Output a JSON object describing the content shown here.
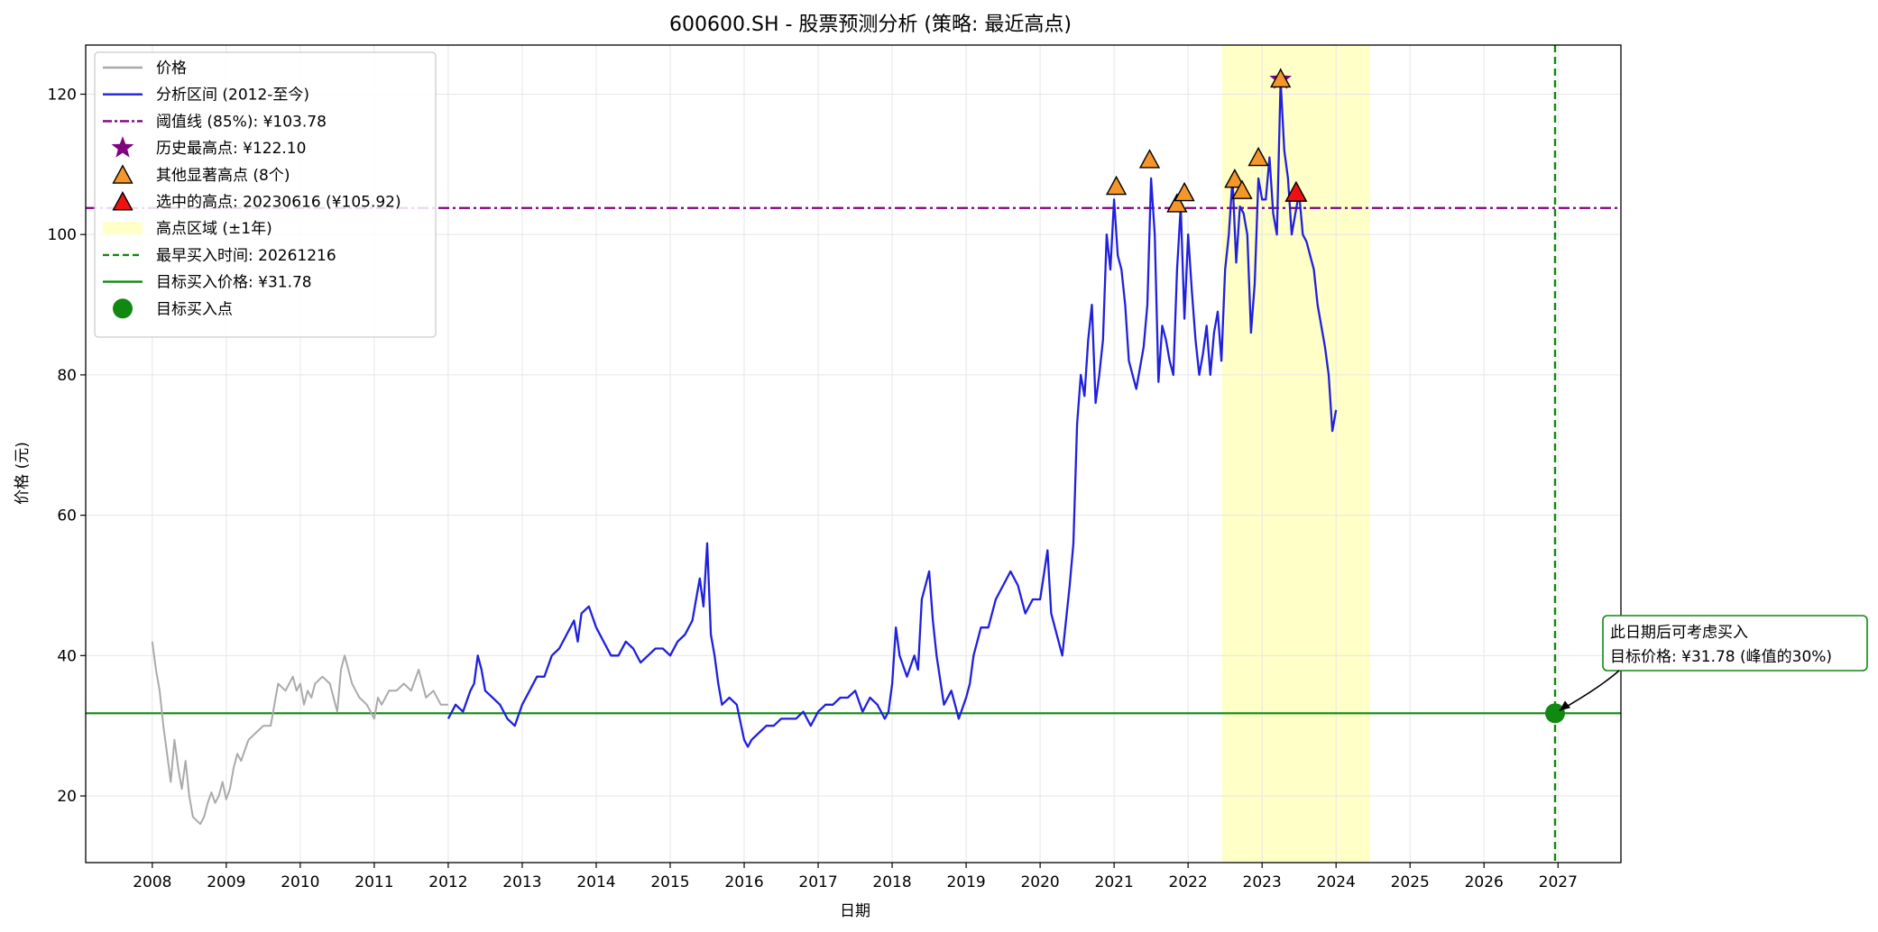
{
  "chart_data": {
    "type": "line",
    "title": "600600.SH  - 股票预测分析 (策略: 最近高点)",
    "xlabel": "日期",
    "ylabel": "价格 (元)",
    "xlim": [
      2007.1,
      2027.85
    ],
    "ylim": [
      10.5,
      127
    ],
    "x_ticks": [
      2008,
      2009,
      2010,
      2011,
      2012,
      2013,
      2014,
      2015,
      2016,
      2017,
      2018,
      2019,
      2020,
      2021,
      2022,
      2023,
      2024,
      2025,
      2026,
      2027
    ],
    "y_ticks": [
      20,
      40,
      60,
      80,
      100,
      120
    ],
    "grid": true,
    "legend_position": "top-left",
    "colors": {
      "price": "#aaaaaa",
      "analysis": "#2020dd",
      "threshold": "#800080",
      "all_time_high": "#800080",
      "other_peaks": "#f5962a",
      "selected_peak": "#ee1111",
      "high_zone": "#ffffc8",
      "buy": "#118811"
    },
    "series": [
      {
        "name": "价格",
        "key": "price",
        "x": [
          2008.0,
          2008.05,
          2008.1,
          2008.15,
          2008.2,
          2008.25,
          2008.3,
          2008.35,
          2008.4,
          2008.45,
          2008.5,
          2008.55,
          2008.6,
          2008.65,
          2008.7,
          2008.75,
          2008.8,
          2008.85,
          2008.9,
          2008.95,
          2009.0,
          2009.05,
          2009.1,
          2009.15,
          2009.2,
          2009.3,
          2009.4,
          2009.5,
          2009.6,
          2009.7,
          2009.8,
          2009.9,
          2009.95,
          2010.0,
          2010.05,
          2010.1,
          2010.15,
          2010.2,
          2010.3,
          2010.4,
          2010.5,
          2010.55,
          2010.6,
          2010.7,
          2010.75,
          2010.8,
          2010.9,
          2011.0,
          2011.05,
          2011.1,
          2011.2,
          2011.3,
          2011.4,
          2011.5,
          2011.6,
          2011.7,
          2011.8,
          2011.9,
          2012.0
        ],
        "y": [
          42,
          38,
          35,
          30,
          26,
          22,
          28,
          24,
          21,
          25,
          20,
          17,
          16.5,
          16,
          17,
          19,
          20.5,
          19,
          20,
          22,
          19.5,
          21,
          24,
          26,
          25,
          28,
          29,
          30,
          30,
          36,
          35,
          37,
          35,
          36,
          33,
          35,
          34,
          36,
          37,
          36,
          32,
          38,
          40,
          36,
          35,
          34,
          33,
          31,
          34,
          33,
          35,
          35,
          36,
          35,
          38,
          34,
          35,
          33,
          33
        ]
      },
      {
        "name": "分析区间 (2012-至今)",
        "key": "analysis",
        "x": [
          2012.0,
          2012.1,
          2012.2,
          2012.3,
          2012.35,
          2012.4,
          2012.45,
          2012.5,
          2012.6,
          2012.7,
          2012.8,
          2012.9,
          2013.0,
          2013.1,
          2013.2,
          2013.3,
          2013.4,
          2013.5,
          2013.6,
          2013.7,
          2013.75,
          2013.8,
          2013.9,
          2014.0,
          2014.1,
          2014.2,
          2014.3,
          2014.4,
          2014.5,
          2014.6,
          2014.7,
          2014.8,
          2014.9,
          2015.0,
          2015.1,
          2015.2,
          2015.3,
          2015.35,
          2015.4,
          2015.45,
          2015.5,
          2015.55,
          2015.6,
          2015.65,
          2015.7,
          2015.8,
          2015.9,
          2016.0,
          2016.05,
          2016.1,
          2016.2,
          2016.3,
          2016.4,
          2016.5,
          2016.6,
          2016.7,
          2016.8,
          2016.9,
          2017.0,
          2017.1,
          2017.2,
          2017.3,
          2017.4,
          2017.5,
          2017.6,
          2017.7,
          2017.8,
          2017.9,
          2017.95,
          2018.0,
          2018.05,
          2018.1,
          2018.2,
          2018.3,
          2018.35,
          2018.4,
          2018.5,
          2018.55,
          2018.6,
          2018.7,
          2018.8,
          2018.9,
          2019.0,
          2019.05,
          2019.1,
          2019.15,
          2019.2,
          2019.3,
          2019.4,
          2019.5,
          2019.6,
          2019.7,
          2019.8,
          2019.9,
          2020.0,
          2020.1,
          2020.15,
          2020.2,
          2020.3,
          2020.35,
          2020.4,
          2020.45,
          2020.5,
          2020.55,
          2020.6,
          2020.65,
          2020.7,
          2020.75,
          2020.8,
          2020.85,
          2020.9,
          2020.95,
          2021.0,
          2021.05,
          2021.1,
          2021.15,
          2021.2,
          2021.3,
          2021.4,
          2021.45,
          2021.5,
          2021.55,
          2021.6,
          2021.65,
          2021.7,
          2021.75,
          2021.8,
          2021.85,
          2021.9,
          2021.95,
          2022.0,
          2022.05,
          2022.1,
          2022.15,
          2022.2,
          2022.25,
          2022.3,
          2022.35,
          2022.4,
          2022.45,
          2022.5,
          2022.55,
          2022.6,
          2022.65,
          2022.7,
          2022.75,
          2022.8,
          2022.85,
          2022.9,
          2022.95,
          2023.0,
          2023.05,
          2023.1,
          2023.15,
          2023.2,
          2023.25,
          2023.3,
          2023.35,
          2023.4,
          2023.45,
          2023.5,
          2023.55,
          2023.6,
          2023.65,
          2023.7,
          2023.75,
          2023.8,
          2023.85,
          2023.9,
          2023.95,
          2024.0
        ],
        "y": [
          31,
          33,
          32,
          35,
          36,
          40,
          38,
          35,
          34,
          33,
          31,
          30,
          33,
          35,
          37,
          37,
          40,
          41,
          43,
          45,
          42,
          46,
          47,
          44,
          42,
          40,
          40,
          42,
          41,
          39,
          40,
          41,
          41,
          40,
          42,
          43,
          45,
          48,
          51,
          47,
          56,
          43,
          40,
          36,
          33,
          34,
          33,
          28,
          27,
          28,
          29,
          30,
          30,
          31,
          31,
          31,
          32,
          30,
          32,
          33,
          33,
          34,
          34,
          35,
          32,
          34,
          33,
          31,
          32,
          36,
          44,
          40,
          37,
          40,
          38,
          48,
          52,
          45,
          40,
          33,
          35,
          31,
          34,
          36,
          40,
          42,
          44,
          44,
          48,
          50,
          52,
          50,
          46,
          48,
          48,
          55,
          46,
          44,
          40,
          45,
          50,
          56,
          73,
          80,
          77,
          85,
          90,
          76,
          80,
          85,
          100,
          95,
          105,
          97,
          95,
          90,
          82,
          78,
          84,
          90,
          108,
          100,
          79,
          87,
          85,
          82,
          80,
          95,
          104,
          88,
          100,
          92,
          85,
          80,
          83,
          87,
          80,
          86,
          89,
          82,
          95,
          100,
          108,
          96,
          104,
          103,
          100,
          86,
          93,
          108,
          105,
          105,
          111,
          103,
          100,
          122,
          112,
          108,
          100,
          103,
          106,
          100,
          99,
          97,
          95,
          90,
          87,
          84,
          80,
          72,
          75
        ]
      }
    ],
    "threshold": {
      "label": "阈值线 (85%): ¥103.78",
      "value": 103.78
    },
    "all_time_high": {
      "label": "历史最高点: ¥122.10",
      "x": 2023.25,
      "y": 122.1
    },
    "other_peaks": {
      "label": "其他显著高点 (8个)",
      "points": [
        {
          "x": 2021.03,
          "y": 106.8
        },
        {
          "x": 2021.48,
          "y": 110.6
        },
        {
          "x": 2021.85,
          "y": 104.3
        },
        {
          "x": 2021.95,
          "y": 105.9
        },
        {
          "x": 2022.63,
          "y": 107.8
        },
        {
          "x": 2022.73,
          "y": 106.2
        },
        {
          "x": 2022.95,
          "y": 110.9
        },
        {
          "x": 2023.25,
          "y": 122.1
        }
      ]
    },
    "selected_peak": {
      "label": "选中的高点: 20230616 (¥105.92)",
      "x": 2023.46,
      "y": 105.92
    },
    "high_zone": {
      "label": "高点区域 (±1年)",
      "x_start": 2022.46,
      "x_end": 2024.46
    },
    "earliest_buy": {
      "label": "最早买入时间: 20261216",
      "x": 2026.96
    },
    "target_price": {
      "label": "目标买入价格: ¥31.78",
      "value": 31.78
    },
    "buy_point": {
      "label": "目标买入点",
      "x": 2026.96,
      "y": 31.78
    },
    "annotation": {
      "line1": "此日期后可考虑买入",
      "line2": "目标价格: ¥31.78 (峰值的30%)"
    }
  }
}
